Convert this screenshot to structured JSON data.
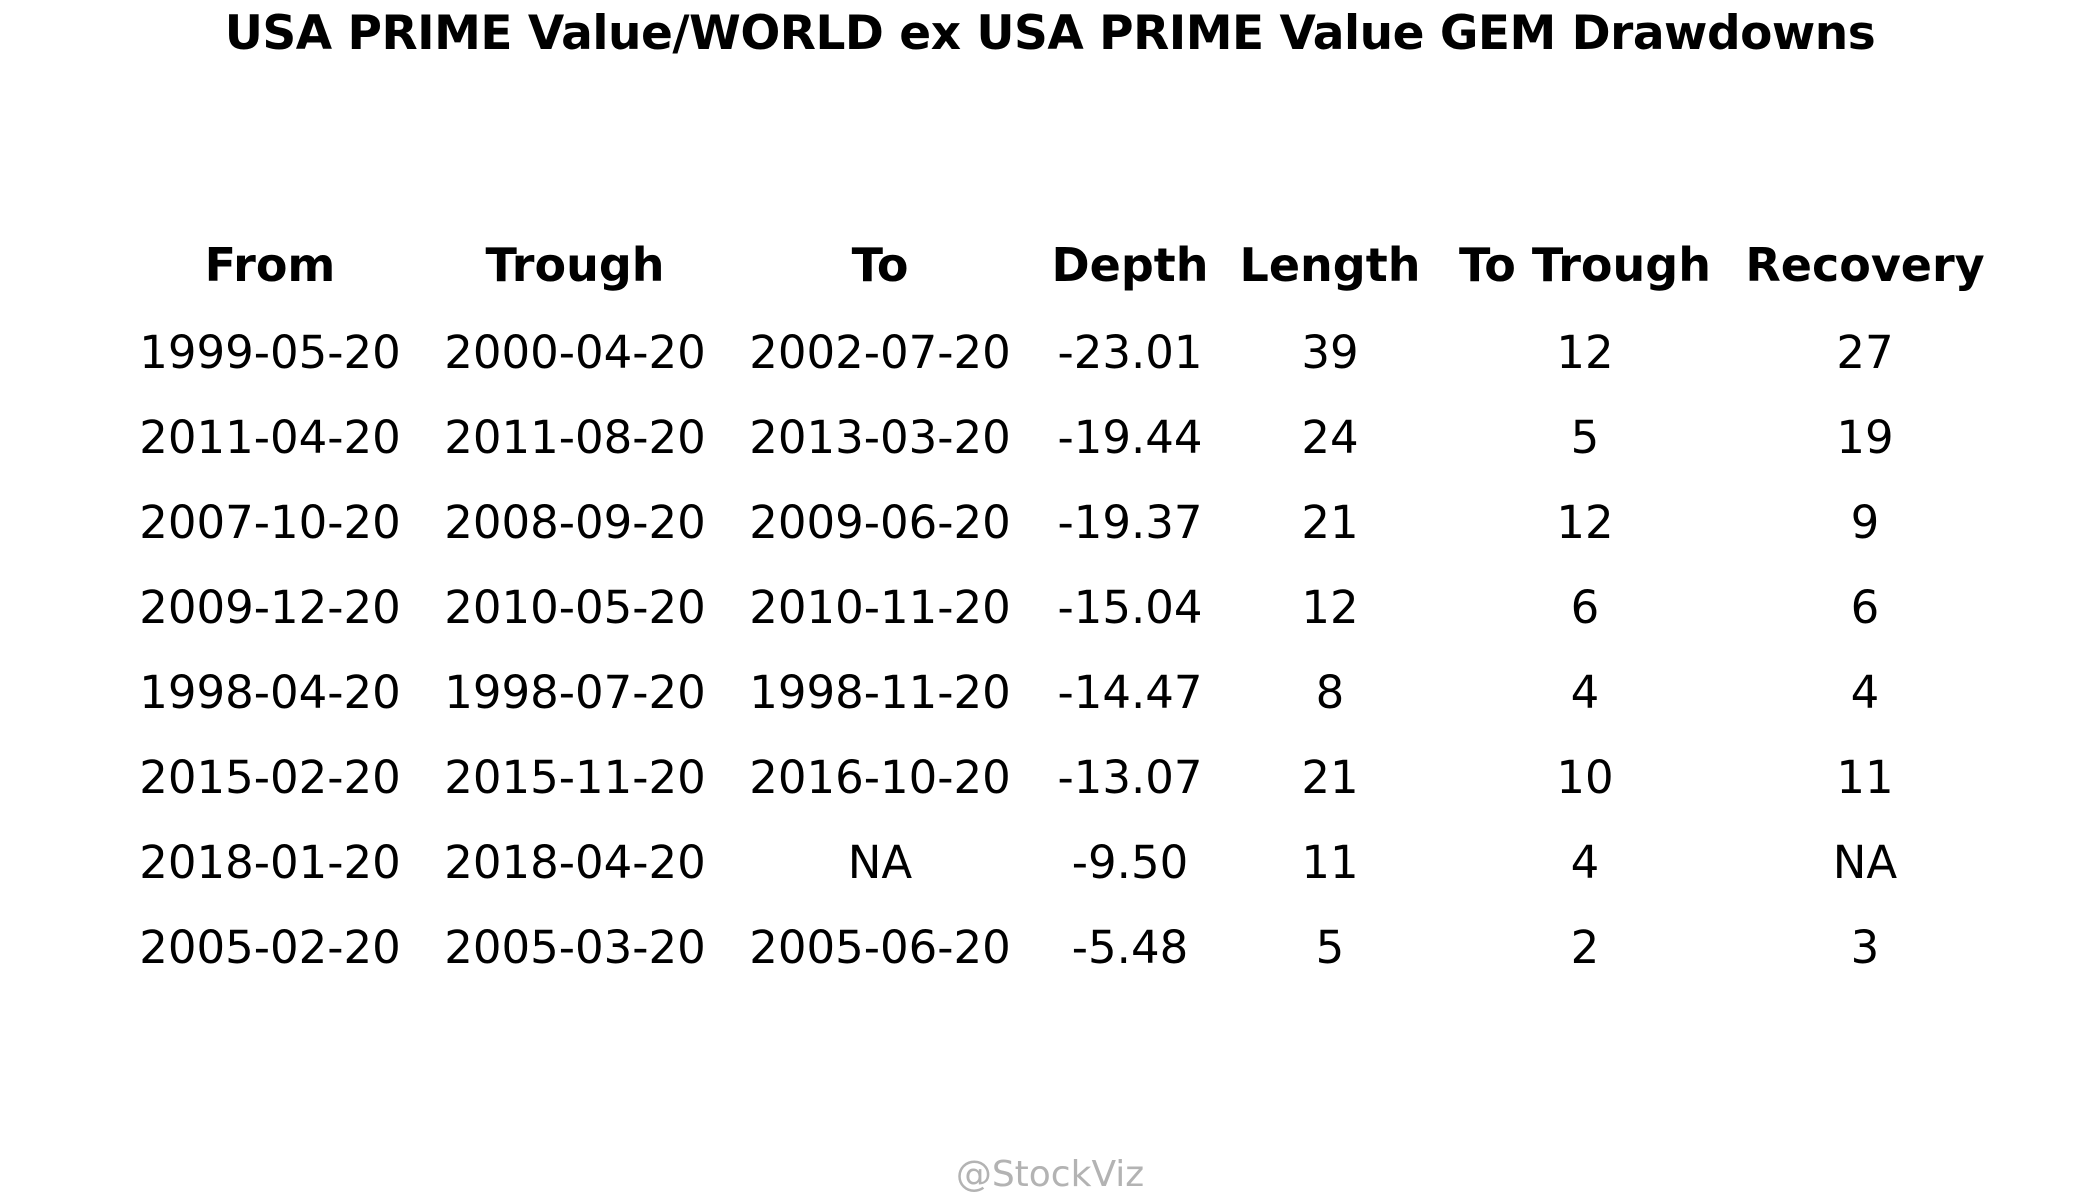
{
  "chart_data": {
    "type": "table",
    "title": "USA PRIME Value/WORLD ex USA PRIME Value GEM Drawdowns",
    "columns": [
      "From",
      "Trough",
      "To",
      "Depth",
      "Length",
      "To Trough",
      "Recovery"
    ],
    "rows": [
      [
        "1999-05-20",
        "2000-04-20",
        "2002-07-20",
        "-23.01",
        "39",
        "12",
        "27"
      ],
      [
        "2011-04-20",
        "2011-08-20",
        "2013-03-20",
        "-19.44",
        "24",
        "5",
        "19"
      ],
      [
        "2007-10-20",
        "2008-09-20",
        "2009-06-20",
        "-19.37",
        "21",
        "12",
        "9"
      ],
      [
        "2009-12-20",
        "2010-05-20",
        "2010-11-20",
        "-15.04",
        "12",
        "6",
        "6"
      ],
      [
        "1998-04-20",
        "1998-07-20",
        "1998-11-20",
        "-14.47",
        "8",
        "4",
        "4"
      ],
      [
        "2015-02-20",
        "2015-11-20",
        "2016-10-20",
        "-13.07",
        "21",
        "10",
        "11"
      ],
      [
        "2018-01-20",
        "2018-04-20",
        "NA",
        "-9.50",
        "11",
        "4",
        "NA"
      ],
      [
        "2005-02-20",
        "2005-03-20",
        "2005-06-20",
        "-5.48",
        "5",
        "2",
        "3"
      ]
    ]
  },
  "watermark": "@StockViz"
}
